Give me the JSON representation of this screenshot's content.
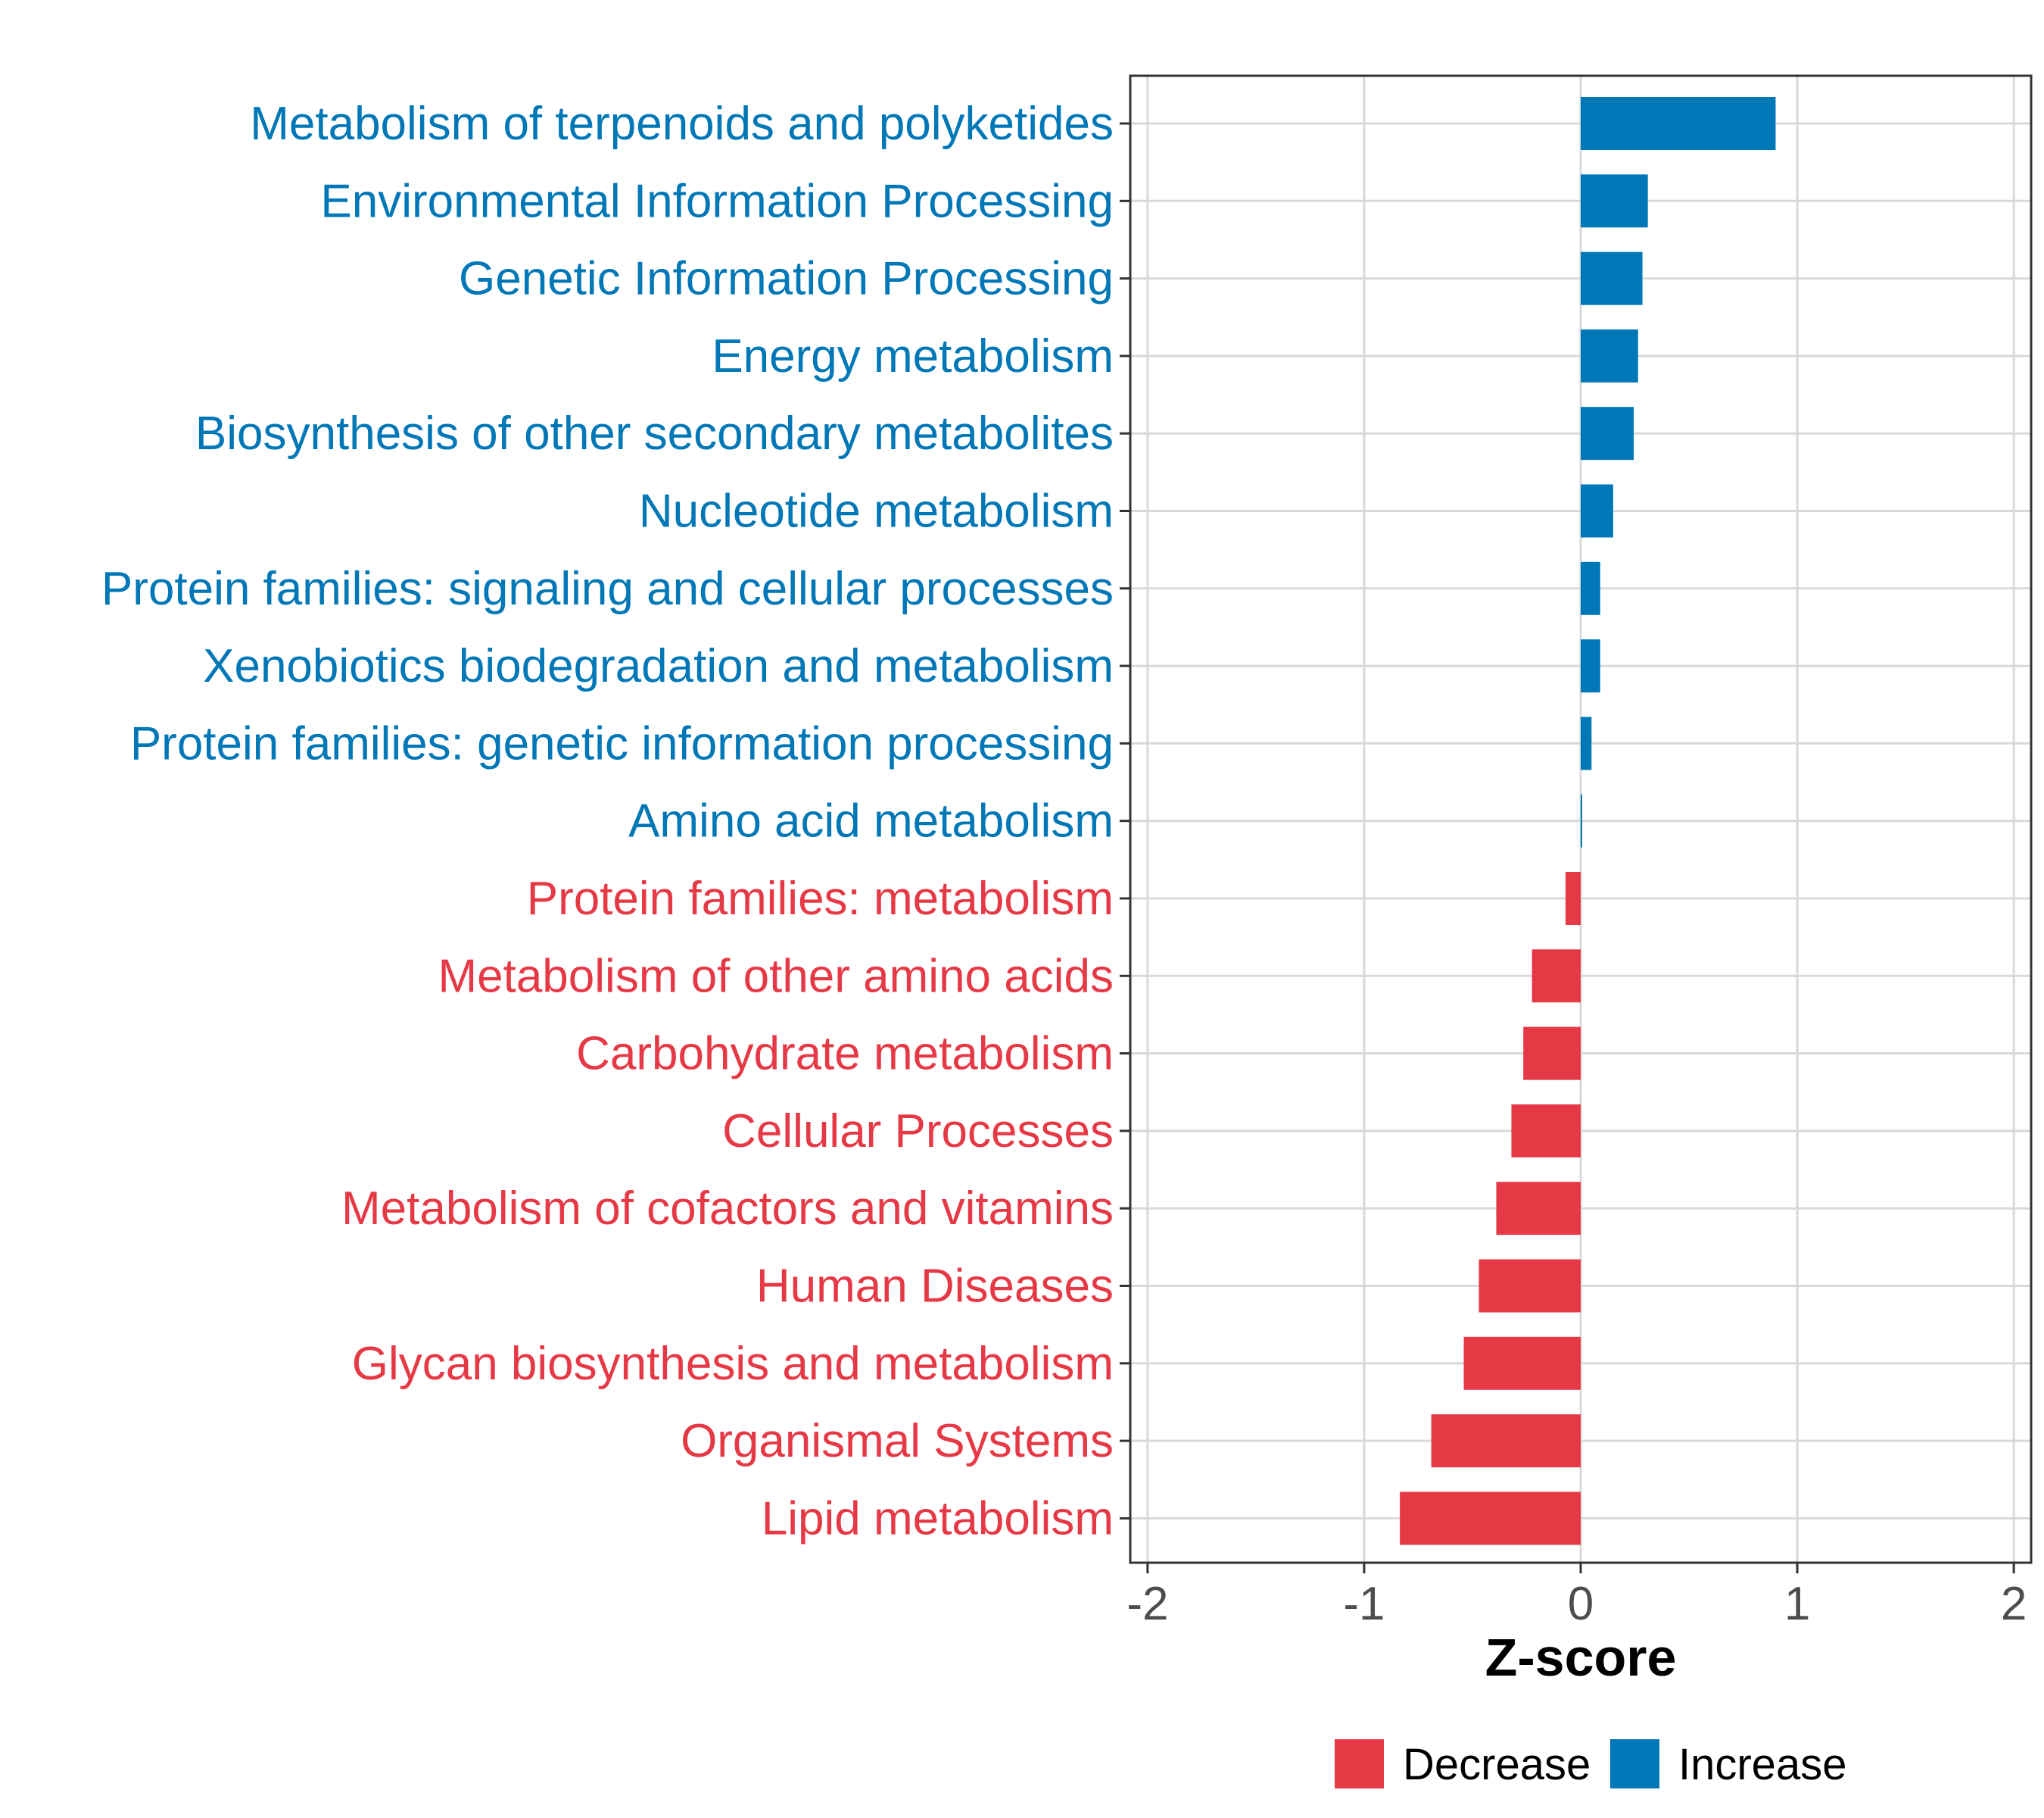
{
  "chart_data": {
    "type": "bar",
    "orientation": "horizontal",
    "categories": [
      "Metabolism of terpenoids and polyketides",
      "Environmental Information Processing",
      "Genetic Information Processing",
      "Energy metabolism",
      "Biosynthesis of other secondary metabolites",
      "Nucleotide metabolism",
      "Protein families: signaling and cellular processes",
      "Xenobiotics biodegradation and metabolism",
      "Protein families: genetic information processing",
      "Amino acid metabolism",
      "Protein families: metabolism",
      "Metabolism of other amino acids",
      "Carbohydrate metabolism",
      "Cellular Processes",
      "Metabolism of cofactors and vitamins",
      "Human Diseases",
      "Glycan biosynthesis and metabolism",
      "Organismal Systems",
      "Lipid metabolism"
    ],
    "values": [
      0.9,
      0.31,
      0.285,
      0.265,
      0.245,
      0.15,
      0.09,
      0.09,
      0.05,
      0.005,
      -0.07,
      -0.225,
      -0.265,
      -0.32,
      -0.39,
      -0.47,
      -0.54,
      -0.69,
      -0.835
    ],
    "groups": [
      "Increase",
      "Increase",
      "Increase",
      "Increase",
      "Increase",
      "Increase",
      "Increase",
      "Increase",
      "Increase",
      "Increase",
      "Decrease",
      "Decrease",
      "Decrease",
      "Decrease",
      "Decrease",
      "Decrease",
      "Decrease",
      "Decrease",
      "Decrease"
    ],
    "xlim": [
      -2.08,
      2.08
    ],
    "xticks": [
      "-2",
      "-1",
      "0",
      "1",
      "2"
    ],
    "xtick_values": [
      -2,
      -1,
      0,
      1,
      2
    ],
    "xlabel": "Z-score",
    "ylabel": "",
    "grid": true,
    "legend_position": "bottom",
    "legend": [
      {
        "name": "Decrease",
        "color": "#e63946"
      },
      {
        "name": "Increase",
        "color": "#0077b6"
      }
    ]
  },
  "colors": {
    "Increase": "#0077b6",
    "Decrease": "#e63946",
    "grid": "#d9d9d9",
    "panel_border": "#333333"
  }
}
